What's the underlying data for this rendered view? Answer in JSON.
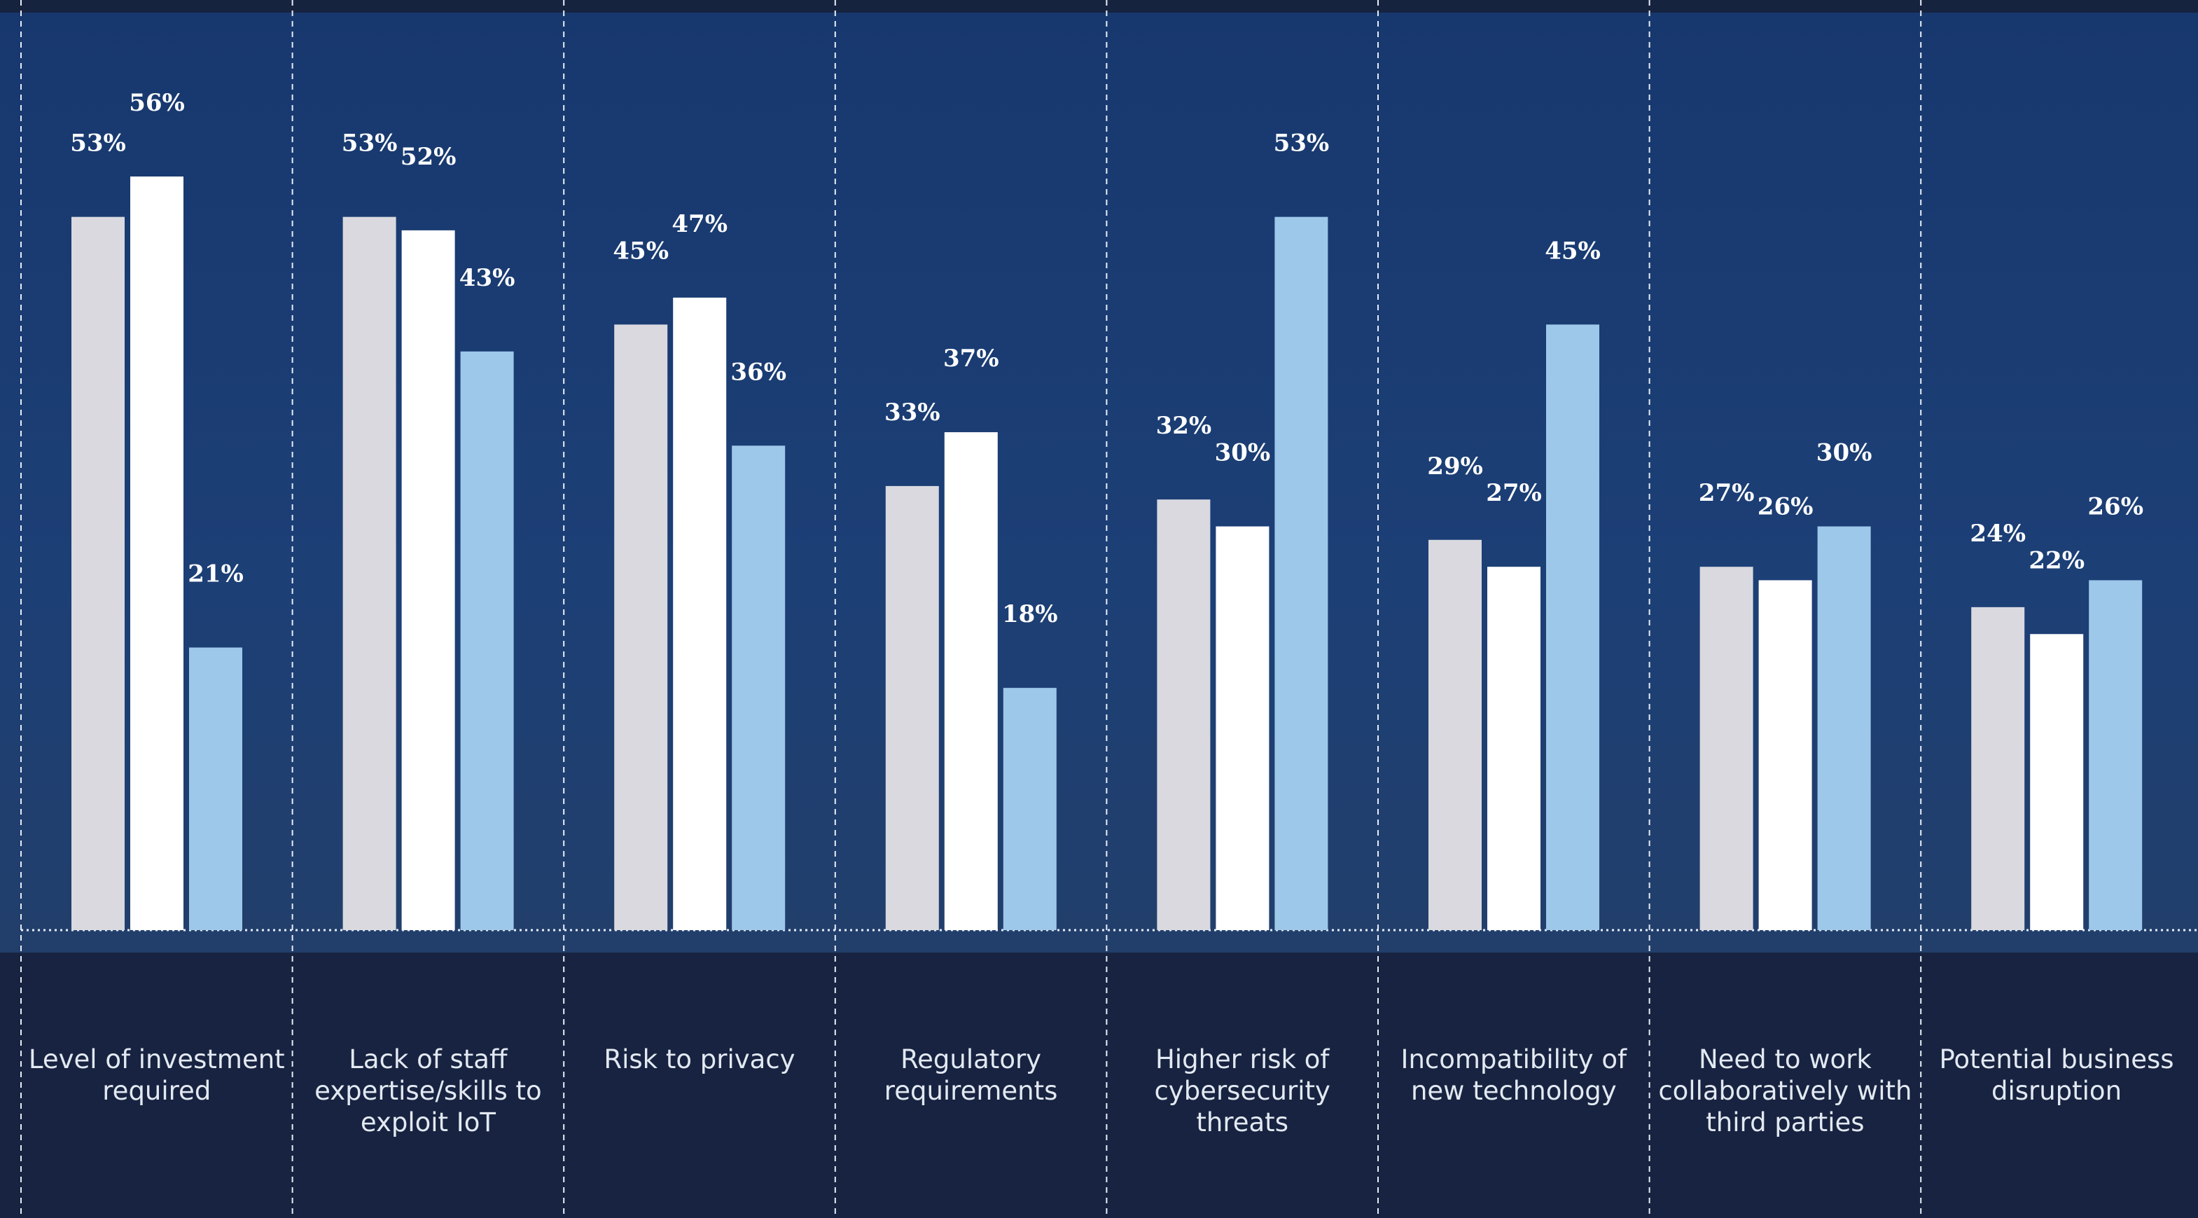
{
  "chart_data": {
    "type": "bar",
    "categories": [
      "Level of investment required",
      "Lack of staff expertise/skills to exploit IoT",
      "Risk to privacy",
      "Regulatory requirements",
      "Higher risk of cybersecurity threats",
      "Incompatibility of new technology",
      "Need to work collaboratively with third parties",
      "Potential business disruption"
    ],
    "series": [
      {
        "color": "#d9d9df",
        "values": [
          53,
          53,
          45,
          33,
          32,
          29,
          27,
          24
        ],
        "value_labels": [
          "53%",
          "53%",
          "45%",
          "33%",
          "32%",
          "29%",
          "27%",
          "24%"
        ]
      },
      {
        "color": "#ffffff",
        "values": [
          56,
          52,
          47,
          37,
          30,
          27,
          26,
          22
        ],
        "value_labels": [
          "56%",
          "52%",
          "47%",
          "37%",
          "30%",
          "27%",
          "26%",
          "22%"
        ]
      },
      {
        "color": "#9dc8ea",
        "values": [
          21,
          43,
          36,
          18,
          53,
          45,
          30,
          26
        ],
        "value_labels": [
          "21%",
          "43%",
          "36%",
          "18%",
          "53%",
          "45%",
          "30%",
          "26%"
        ]
      }
    ]
  }
}
